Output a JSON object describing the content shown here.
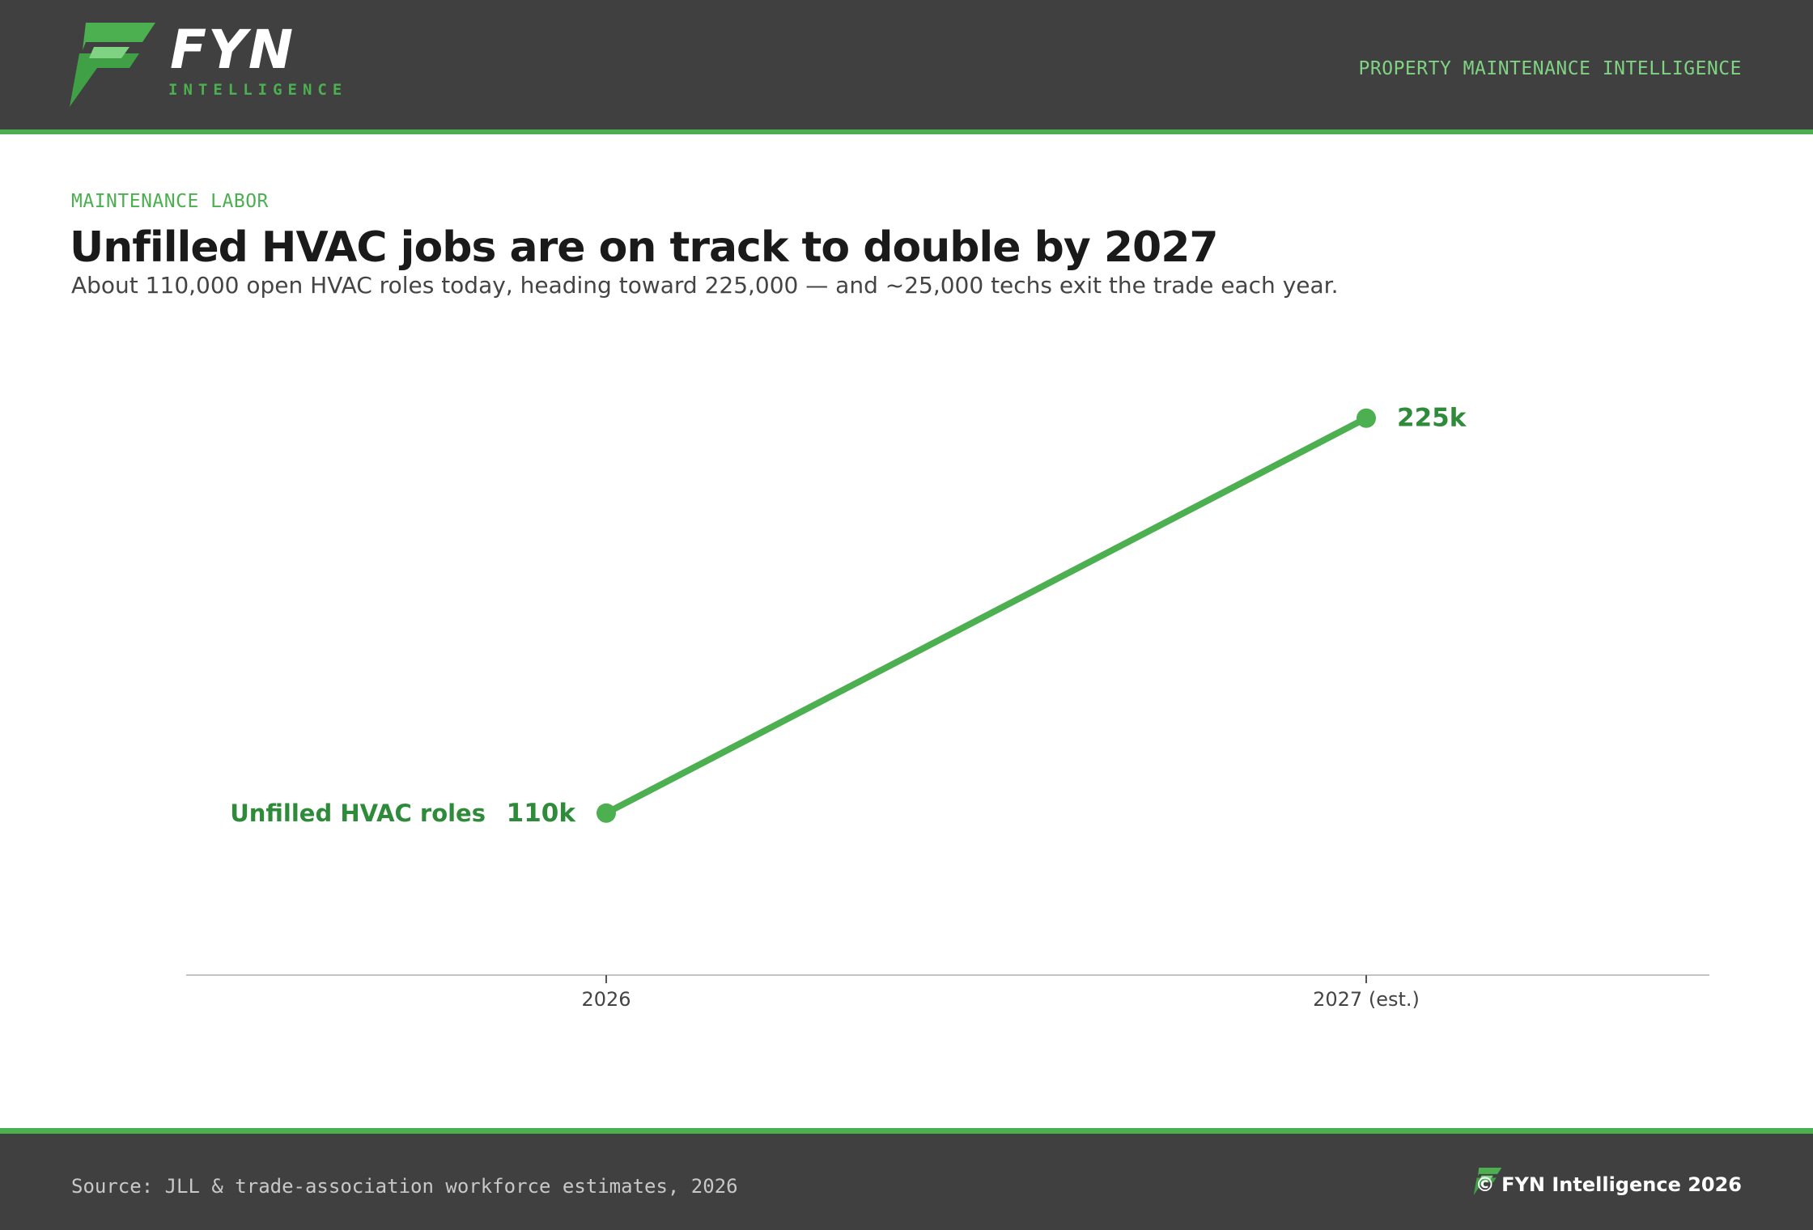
{
  "brand": {
    "name": "FYN",
    "sub": "INTELLIGENCE",
    "tagline": "PROPERTY MAINTENANCE INTELLIGENCE",
    "accent": "#4caf50",
    "accent_light": "#7fd383",
    "label_color": "#2e8b3a",
    "bar_color": "#404040"
  },
  "header": {
    "kicker": "MAINTENANCE LABOR",
    "title": "Unfilled HVAC jobs are on track to double by 2027",
    "subtitle": "About 110,000 open HVAC roles today, heading toward 225,000 — and ~25,000 techs exit the trade each year."
  },
  "chart_data": {
    "type": "line",
    "title": "Unfilled HVAC jobs are on track to double by 2027",
    "categories": [
      "2026",
      "2027 (est.)"
    ],
    "series": [
      {
        "name": "Unfilled HVAC roles",
        "values": [
          110000,
          225000
        ],
        "data_labels": [
          "110k",
          "225k"
        ]
      }
    ],
    "ylim": [
      64000,
      269000
    ],
    "grid": false,
    "legend": "inline-left"
  },
  "footer": {
    "source": "Source: JLL & trade-association workforce estimates, 2026",
    "copyright": "© FYN Intelligence 2026"
  }
}
